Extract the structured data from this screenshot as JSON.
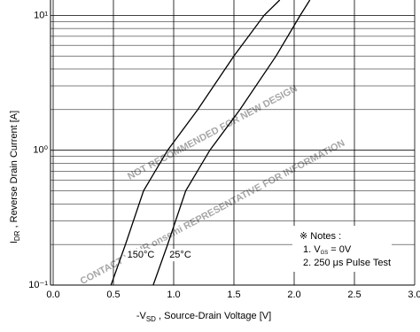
{
  "chart_data": {
    "type": "line",
    "y_scale": "log",
    "grid": true,
    "x_label": {
      "prefix": "-V",
      "sub": "SD",
      "rest": " , Source-Drain Voltage  [V]"
    },
    "y_label": {
      "prefix": "I",
      "sub": "DR",
      "rest": " , Reverse Drain Current  [A]"
    },
    "xlim": [
      0,
      3
    ],
    "xticks": [
      {
        "value": 0,
        "label": "0.0"
      },
      0.5,
      {
        "value": 1,
        "label": "1.0"
      },
      1.5,
      {
        "value": 2,
        "label": "2.0"
      },
      2.5,
      {
        "value": 3,
        "label": "3.0"
      }
    ],
    "ylim": [
      0.1,
      13
    ],
    "yticks": [
      {
        "value": 0.1,
        "label": "10⁻¹"
      },
      {
        "value": 1,
        "label": "10⁰"
      },
      {
        "value": 10,
        "label": "10¹"
      }
    ],
    "yminor_ticks": [
      0.2,
      0.3,
      0.4,
      0.5,
      0.6,
      0.7,
      0.8,
      0.9,
      2,
      3,
      4,
      5,
      6,
      7,
      8,
      9
    ],
    "series": [
      {
        "name": "150°C",
        "color": "#000000",
        "x": [
          0.48,
          0.6,
          0.75,
          0.95,
          1.2,
          1.5,
          1.75,
          1.88
        ],
        "values": [
          0.1,
          0.2,
          0.5,
          1,
          2,
          5,
          10,
          13
        ]
      },
      {
        "name": "25°C",
        "color": "#000000",
        "x": [
          0.83,
          0.95,
          1.1,
          1.3,
          1.55,
          1.85,
          2.05,
          2.13
        ],
        "values": [
          0.1,
          0.2,
          0.5,
          1,
          2,
          5,
          10,
          13
        ]
      }
    ],
    "notes": {
      "title": "※ Notes :",
      "line1": {
        "prefix": "1. V",
        "sub": "GS",
        "rest": " = 0V"
      },
      "line2": "2. 250 μs Pulse Test"
    },
    "watermark": [
      "NOT RECOMMENDED FOR NEW DESIGN",
      "CONTACT YOUR onsemi REPRESENTATIVE FOR INFORMATION"
    ]
  }
}
